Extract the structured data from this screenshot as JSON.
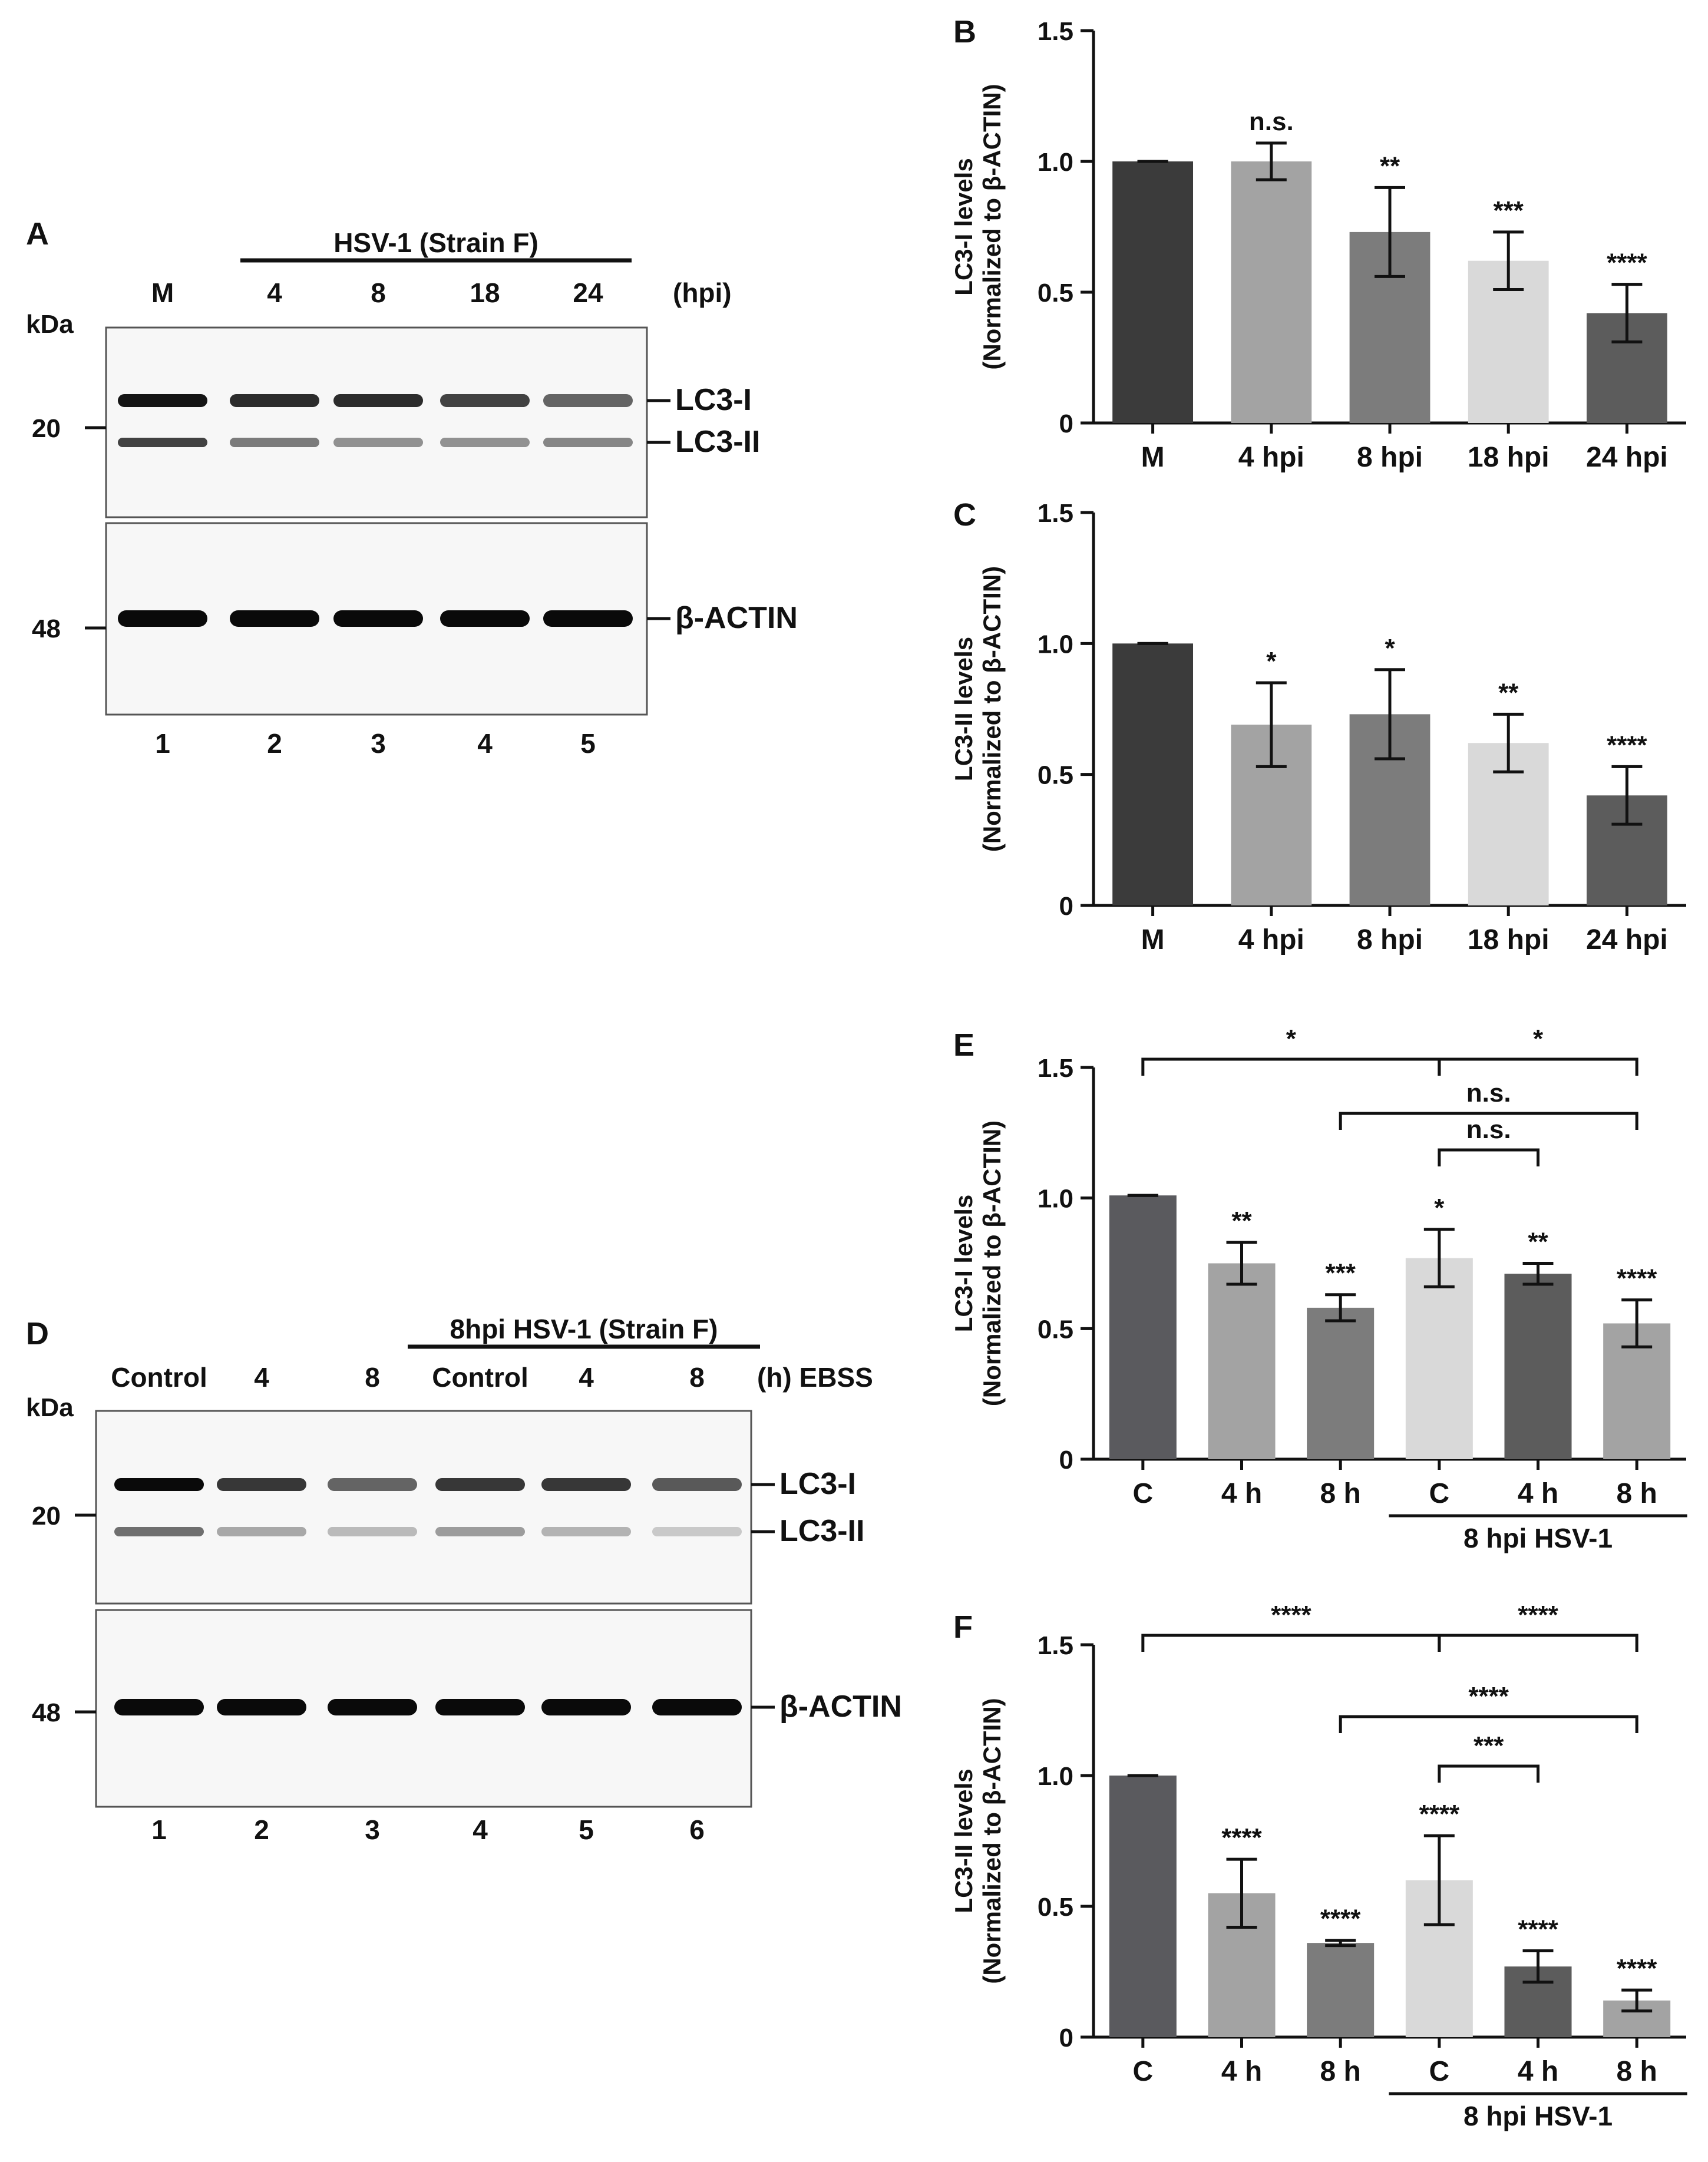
{
  "panelA": {
    "letter": "A",
    "treatment": "HSV-1 (Strain F)",
    "lanes": [
      "M",
      "4",
      "8",
      "18",
      "24"
    ],
    "lane_unit": "(hpi)",
    "kda_label": "kDa",
    "mw_markers": [
      "20",
      "48"
    ],
    "band_labels": [
      "LC3-I",
      "LC3-II",
      "β-ACTIN"
    ],
    "lane_numbers": [
      "1",
      "2",
      "3",
      "4",
      "5"
    ],
    "band_intensity": {
      "lc3i": [
        0.95,
        0.85,
        0.85,
        0.75,
        0.6
      ],
      "lc3ii": [
        0.75,
        0.5,
        0.4,
        0.4,
        0.45
      ],
      "actin": [
        1.0,
        1.0,
        1.0,
        1.0,
        1.0
      ]
    }
  },
  "panelD": {
    "letter": "D",
    "treatment": "8hpi HSV-1 (Strain F)",
    "lanes": [
      "Control",
      "4",
      "8",
      "Control",
      "4",
      "8"
    ],
    "lane_unit": "(h) EBSS",
    "kda_label": "kDa",
    "mw_markers": [
      "20",
      "48"
    ],
    "band_labels": [
      "LC3-I",
      "LC3-II",
      "β-ACTIN"
    ],
    "lane_numbers": [
      "1",
      "2",
      "3",
      "4",
      "5",
      "6"
    ],
    "band_intensity": {
      "lc3i": [
        1.0,
        0.8,
        0.6,
        0.8,
        0.8,
        0.65
      ],
      "lc3ii": [
        0.55,
        0.3,
        0.22,
        0.35,
        0.25,
        0.15
      ],
      "actin": [
        1.0,
        1.0,
        1.0,
        1.0,
        1.0,
        1.0
      ]
    }
  },
  "chart_data": [
    {
      "id": "B",
      "type": "bar",
      "ylabel_line1": "LC3-I levels",
      "ylabel_line2": "(Normalized to β-ACTIN)",
      "ylim": [
        0,
        1.5
      ],
      "yticks": [
        "0",
        "0.5",
        "1.0",
        "1.5"
      ],
      "ytick_values": [
        0,
        0.5,
        1.0,
        1.5
      ],
      "categories": [
        "M",
        "4 hpi",
        "8 hpi",
        "18 hpi",
        "24 hpi"
      ],
      "values": [
        1.0,
        1.0,
        0.73,
        0.62,
        0.42
      ],
      "errors": [
        0.0,
        0.07,
        0.17,
        0.11,
        0.11
      ],
      "colors": [
        "#3b3b3b",
        "#a3a3a3",
        "#7c7c7c",
        "#d9d9d9",
        "#5c5c5c"
      ],
      "significance": [
        "",
        "n.s.",
        "**",
        "***",
        "****"
      ]
    },
    {
      "id": "C",
      "type": "bar",
      "ylabel_line1": "LC3-II levels",
      "ylabel_line2": "(Normalized to β-ACTIN)",
      "ylim": [
        0,
        1.5
      ],
      "yticks": [
        "0",
        "0.5",
        "1.0",
        "1.5"
      ],
      "ytick_values": [
        0,
        0.5,
        1.0,
        1.5
      ],
      "categories": [
        "M",
        "4 hpi",
        "8 hpi",
        "18 hpi",
        "24 hpi"
      ],
      "values": [
        1.0,
        0.69,
        0.73,
        0.62,
        0.42
      ],
      "errors": [
        0.0,
        0.16,
        0.17,
        0.11,
        0.11
      ],
      "colors": [
        "#3b3b3b",
        "#a3a3a3",
        "#7c7c7c",
        "#d9d9d9",
        "#5c5c5c"
      ],
      "significance": [
        "",
        "*",
        "*",
        "**",
        "****"
      ]
    },
    {
      "id": "E",
      "type": "bar",
      "ylabel_line1": "LC3-I levels",
      "ylabel_line2": "(Normalized to β-ACTIN)",
      "ylim": [
        0,
        1.5
      ],
      "yticks": [
        "0",
        "0.5",
        "1.0",
        "1.5"
      ],
      "ytick_values": [
        0,
        0.5,
        1.0,
        1.5
      ],
      "categories": [
        "C",
        "4 h",
        "8 h",
        "C",
        "4 h",
        "8 h"
      ],
      "group_label": "8 hpi HSV-1",
      "values": [
        1.01,
        0.75,
        0.58,
        0.77,
        0.71,
        0.52
      ],
      "errors": [
        0.0,
        0.08,
        0.05,
        0.11,
        0.04,
        0.09
      ],
      "colors": [
        "#5a5a5e",
        "#a3a3a3",
        "#7c7c7c",
        "#d9d9d9",
        "#5c5c5c",
        "#a3a3a3"
      ],
      "significance": [
        "",
        "**",
        "***",
        "*",
        "**",
        "****"
      ],
      "comparisons": [
        {
          "from": 0,
          "to": 3,
          "label": "*"
        },
        {
          "from": 3,
          "to": 5,
          "label": "*"
        },
        {
          "from": 2,
          "to": 5,
          "label": "n.s."
        },
        {
          "from": 3,
          "to": 4,
          "label": "n.s."
        }
      ]
    },
    {
      "id": "F",
      "type": "bar",
      "ylabel_line1": "LC3-II levels",
      "ylabel_line2": "(Normalized to β-ACTIN)",
      "ylim": [
        0,
        1.5
      ],
      "yticks": [
        "0",
        "0.5",
        "1.0",
        "1.5"
      ],
      "ytick_values": [
        0,
        0.5,
        1.0,
        1.5
      ],
      "categories": [
        "C",
        "4 h",
        "8 h",
        "C",
        "4 h",
        "8 h"
      ],
      "group_label": "8 hpi HSV-1",
      "values": [
        1.0,
        0.55,
        0.36,
        0.6,
        0.27,
        0.14
      ],
      "errors": [
        0.0,
        0.13,
        0.01,
        0.17,
        0.06,
        0.04
      ],
      "colors": [
        "#5a5a5e",
        "#a3a3a3",
        "#7c7c7c",
        "#d9d9d9",
        "#5c5c5c",
        "#a3a3a3"
      ],
      "significance": [
        "",
        "****",
        "****",
        "****",
        "****",
        "****"
      ],
      "comparisons": [
        {
          "from": 0,
          "to": 3,
          "label": "****"
        },
        {
          "from": 3,
          "to": 5,
          "label": "****"
        },
        {
          "from": 2,
          "to": 5,
          "label": "****"
        },
        {
          "from": 3,
          "to": 4,
          "label": "***"
        }
      ]
    }
  ]
}
